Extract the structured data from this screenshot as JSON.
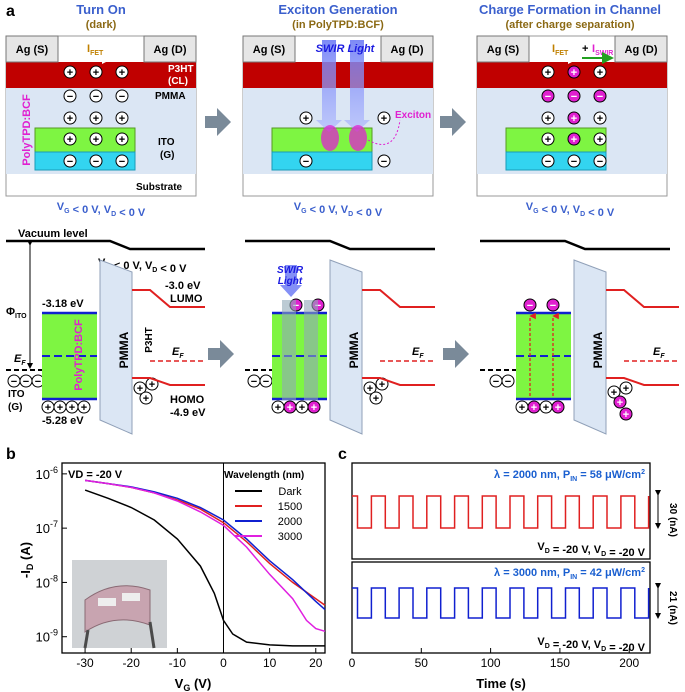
{
  "panel_labels": {
    "a": "a",
    "b": "b",
    "c": "c"
  },
  "devices": [
    {
      "title": "Turn On",
      "subtitle": "(dark)",
      "ag_s": "Ag (S)",
      "ag_d": "Ag (D)",
      "current_label": "I",
      "current_sub": "FET",
      "p3ht": "P3HT",
      "cl": "(CL)",
      "pmma": "PMMA",
      "polytpd": "PolyTPD:BCF",
      "ito": "ITO",
      "g": "(G)",
      "substrate": "Substrate",
      "bias": "VG < 0 V, VD < 0 V"
    },
    {
      "title": "Exciton Generation",
      "subtitle": "(in PolyTPD:BCF)",
      "ag_s": "Ag (S)",
      "ag_d": "Ag (D)",
      "light": "SWIR Light",
      "exciton": "Exciton",
      "bias": "VG < 0 V, VD < 0 V"
    },
    {
      "title": "Charge Formation in Channel",
      "subtitle": "(after charge separation)",
      "ag_s": "Ag (S)",
      "ag_d": "Ag (D)",
      "i_fet": "IFET",
      "plus": "+",
      "i_swir": "ISWIR",
      "bias": "VG < 0 V, VD < 0 V"
    }
  ],
  "band_diagram": {
    "vacuum_level": "Vacuum level",
    "bias": "VG < 0 V, VD < 0 V",
    "phi": "Φ",
    "phi_sub": "ITO",
    "e_lumo_polytpd": "-3.18 eV",
    "e_homo_polytpd": "-5.28 eV",
    "e_lumo_p3ht": "-3.0 eV",
    "lumo": "LUMO",
    "homo": "HOMO",
    "e_homo_p3ht": "-4.9 eV",
    "ef": "E",
    "ef_sub": "F",
    "ito": "ITO",
    "g": "(G)",
    "polytpd": "PolyTPD:BCF",
    "pmma": "PMMA",
    "p3ht": "P3HT",
    "swir_light_1": "SWIR",
    "swir_light_2": "Light"
  },
  "colors": {
    "blue_title": "#3a5fcd",
    "brown_sub": "#8b6914",
    "magenta": "#e020d0",
    "p3ht_red": "#c00000",
    "pmma_blue": "#dbe6f4",
    "polytpd_green": "#7ef542",
    "ito_cyan": "#33d4f0",
    "orange_axis": "#555555"
  },
  "chart_b": {
    "type": "line",
    "annotation": "VD = -20 V",
    "legend_title": "Wavelength (nm)",
    "xlabel": "VG (V)",
    "ylabel": "-ID (A)",
    "xlim": [
      -35,
      22
    ],
    "ylim_log10": [
      -9.3,
      -5.8
    ],
    "xticks": [
      "-30",
      "-20",
      "-10",
      "0",
      "10",
      "20"
    ],
    "yticks": [
      "10-6",
      "10-7",
      "10-8",
      "10-9"
    ],
    "series": [
      {
        "name": "Dark",
        "color": "#000000",
        "x": [
          -30,
          -25,
          -20,
          -15,
          -10,
          -5,
          -2,
          0,
          2,
          5,
          10,
          15,
          20,
          22
        ],
        "log_y": [
          -6.3,
          -6.45,
          -6.62,
          -6.85,
          -7.2,
          -7.7,
          -8.2,
          -8.7,
          -8.95,
          -9.1,
          -9.15,
          -9.17,
          -9.17,
          -9.17
        ]
      },
      {
        "name": "1500",
        "color": "#e02020",
        "x": [
          -30,
          -25,
          -20,
          -15,
          -10,
          -5,
          0,
          5,
          10,
          15,
          20,
          22
        ],
        "log_y": [
          -6.12,
          -6.18,
          -6.25,
          -6.35,
          -6.48,
          -6.65,
          -6.9,
          -7.25,
          -7.65,
          -8.0,
          -8.3,
          -8.42
        ]
      },
      {
        "name": "2000",
        "color": "#1020d0",
        "x": [
          -30,
          -25,
          -20,
          -15,
          -10,
          -5,
          0,
          5,
          10,
          15,
          20,
          22
        ],
        "log_y": [
          -6.12,
          -6.18,
          -6.24,
          -6.33,
          -6.45,
          -6.62,
          -6.85,
          -7.2,
          -7.6,
          -7.95,
          -8.35,
          -8.5
        ]
      },
      {
        "name": "3000",
        "color": "#e020e0",
        "x": [
          -30,
          -25,
          -20,
          -15,
          -10,
          -5,
          0,
          5,
          10,
          15,
          18,
          20,
          22
        ],
        "log_y": [
          -6.12,
          -6.18,
          -6.25,
          -6.35,
          -6.5,
          -6.7,
          -6.95,
          -7.35,
          -7.85,
          -8.3,
          -8.7,
          -8.85,
          -8.9
        ]
      }
    ]
  },
  "chart_c": {
    "type": "line",
    "xlabel": "Time (s)",
    "xlim": [
      0,
      215
    ],
    "xticks": [
      "0",
      "50",
      "100",
      "150",
      "200"
    ],
    "panels": [
      {
        "label": "λ = 2000 nm, P",
        "label_sub": "IN",
        "label_end": " = 58 μW/cm",
        "label_sup": "2",
        "bias": "VD = -20 V, VD = -20 V",
        "scale": "30 (nA)",
        "color": "#e02020",
        "period_s": 20,
        "on_fraction": 0.5,
        "start_s": 0
      },
      {
        "label": "λ = 3000 nm, P",
        "label_sub": "IN",
        "label_end": " = 42 μW/cm",
        "label_sup": "2",
        "bias": "VD = -20 V, VD = -20 V",
        "scale": "21 (nA)",
        "color": "#1020d0",
        "period_s": 20,
        "on_fraction": 0.5,
        "start_s": 0
      }
    ]
  }
}
